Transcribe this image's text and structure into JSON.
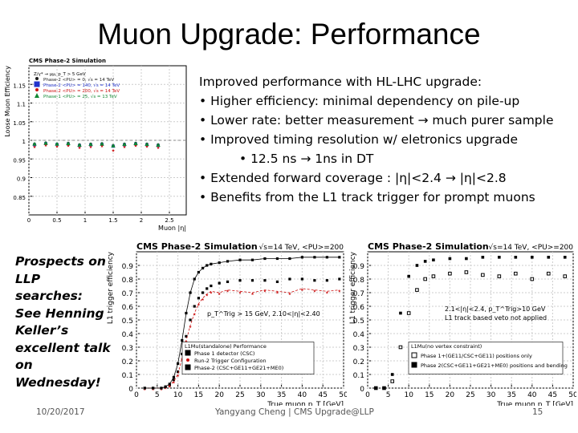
{
  "slide": {
    "title": "Muon Upgrade: Performance",
    "bullets": [
      "Improved performance with HL-LHC upgrade:",
      "• Higher efficiency: minimal dependency on pile-up",
      "• Lower rate: better measurement → much purer sample",
      "• Improved timing resolution w/ eletronics upgrade",
      "• 12.5 ns → 1ns in DT",
      "• Extended forward coverage : |η|<2.4 → |η|<2.8",
      "• Benefits from the L1 track trigger for prompt muons"
    ],
    "llp_note": [
      "Prospects on",
      "LLP searches:",
      "See Henning",
      "Keller’s",
      "excellent talk",
      "on Wednesday!"
    ],
    "footer": {
      "date": "10/20/2017",
      "center": "Yangyang Cheng | CMS Upgrade@LLP",
      "page": "15"
    }
  },
  "chart_data": [
    {
      "type": "scatter",
      "title": "CMS Phase-2 Simulation",
      "xlabel": "Muon |η|",
      "ylabel": "Loose Muon Efficiency",
      "xlim": [
        0,
        2.8
      ],
      "ylim": [
        0.8,
        1.2
      ],
      "xticks": [
        "0",
        "0.5",
        "1",
        "1.5",
        "2",
        "2.5"
      ],
      "yticks": [
        "0.85",
        "0.9",
        "0.95",
        "1",
        "1.05",
        "1.1",
        "1.15"
      ],
      "legend_header": "Z/γ* → μμ, p_T > 5 GeV",
      "series": [
        {
          "name": "Phase-2 <PU> = 0,   √s = 14 TeV",
          "color": "#1a1a1a",
          "x": [
            0.1,
            0.3,
            0.5,
            0.7,
            0.9,
            1.1,
            1.3,
            1.5,
            1.7,
            1.9,
            2.1,
            2.3
          ],
          "y": [
            0.99,
            0.993,
            0.99,
            0.992,
            0.988,
            0.99,
            0.991,
            0.986,
            0.99,
            0.992,
            0.99,
            0.988
          ]
        },
        {
          "name": "Phase-2 <PU> = 140, √s = 14 TeV",
          "color": "#2233cc",
          "x": [
            0.1,
            0.3,
            0.5,
            0.7,
            0.9,
            1.1,
            1.3,
            1.5,
            1.7,
            1.9,
            2.1,
            2.3
          ],
          "y": [
            0.988,
            0.991,
            0.989,
            0.99,
            0.986,
            0.988,
            0.989,
            0.984,
            0.988,
            0.99,
            0.988,
            0.986
          ]
        },
        {
          "name": "Phase-2 <PU> = 200, √s = 14 TeV",
          "color": "#cc1111",
          "x": [
            0.1,
            0.3,
            0.5,
            0.7,
            0.9,
            1.1,
            1.3,
            1.5,
            1.7,
            1.9,
            2.1,
            2.3
          ],
          "y": [
            0.985,
            0.989,
            0.986,
            0.988,
            0.983,
            0.985,
            0.987,
            0.975,
            0.985,
            0.988,
            0.986,
            0.983
          ]
        },
        {
          "name": "Phase-1 <PU> = 25,  √s = 13 TeV",
          "color": "#118833",
          "x": [
            0.1,
            0.3,
            0.5,
            0.7,
            0.9,
            1.1,
            1.3,
            1.5,
            1.7,
            1.9,
            2.1,
            2.3
          ],
          "y": [
            0.99,
            0.992,
            0.99,
            0.991,
            0.987,
            0.989,
            0.99,
            0.985,
            0.989,
            0.991,
            0.989,
            0.987
          ]
        }
      ]
    },
    {
      "type": "line",
      "title": "CMS Phase-2 Simulation",
      "header_right": "√s=14 TeV, <PU>=200",
      "xlabel": "True muon p_T [GeV]",
      "ylabel": "L1 trigger efficiency",
      "xlim": [
        0,
        50
      ],
      "ylim": [
        0,
        1.0
      ],
      "xticks": [
        "0",
        "5",
        "10",
        "15",
        "20",
        "25",
        "30",
        "35",
        "40",
        "45",
        "50"
      ],
      "yticks": [
        "0",
        "0.1",
        "0.2",
        "0.3",
        "0.4",
        "0.5",
        "0.6",
        "0.7",
        "0.8",
        "0.9"
      ],
      "cut_label": "p_T^Trig > 15 GeV, 2.10<|η|<2.40",
      "legend_title": "L1Mu(standalone) Performance",
      "series": [
        {
          "name": "Phase 1 detector (CSC)",
          "color": "#000000",
          "x": [
            2,
            4,
            6,
            7,
            8,
            9,
            10,
            11,
            12,
            13,
            14,
            15,
            16,
            17,
            18,
            20,
            22,
            25,
            28,
            31,
            34,
            37,
            40,
            43,
            46,
            49
          ],
          "y": [
            0,
            0,
            0,
            0.01,
            0.02,
            0.06,
            0.12,
            0.25,
            0.38,
            0.5,
            0.6,
            0.66,
            0.7,
            0.73,
            0.75,
            0.77,
            0.78,
            0.79,
            0.79,
            0.79,
            0.78,
            0.8,
            0.8,
            0.79,
            0.79,
            0.8
          ]
        },
        {
          "name": "Run-2 Trigger Configuration",
          "color": "#cc1111",
          "x": [
            2,
            4,
            6,
            7,
            8,
            9,
            10,
            11,
            12,
            13,
            14,
            15,
            16,
            17,
            18,
            20,
            22,
            25,
            28,
            31,
            34,
            37,
            40,
            43,
            46,
            49
          ],
          "y": [
            0,
            0,
            0,
            0.01,
            0.02,
            0.05,
            0.1,
            0.22,
            0.35,
            0.46,
            0.55,
            0.62,
            0.66,
            0.69,
            0.71,
            0.7,
            0.72,
            0.71,
            0.7,
            0.72,
            0.71,
            0.7,
            0.73,
            0.72,
            0.71,
            0.72
          ]
        },
        {
          "name": "Phase-2 (CSC+GE11+GE21+ME0)",
          "color": "#000000",
          "x": [
            2,
            4,
            6,
            7,
            8,
            9,
            10,
            11,
            12,
            13,
            14,
            15,
            16,
            17,
            18,
            20,
            22,
            25,
            28,
            31,
            34,
            37,
            40,
            43,
            46,
            49
          ],
          "y": [
            0,
            0,
            0,
            0.01,
            0.03,
            0.08,
            0.18,
            0.35,
            0.55,
            0.7,
            0.8,
            0.85,
            0.88,
            0.9,
            0.91,
            0.92,
            0.93,
            0.94,
            0.94,
            0.95,
            0.95,
            0.95,
            0.96,
            0.96,
            0.96,
            0.96
          ]
        }
      ]
    },
    {
      "type": "line",
      "title": "CMS Phase-2 Simulation",
      "header_right": "√s=14 TeV, <PU>=200",
      "xlabel": "True muon p_T [GeV]",
      "ylabel": "L1 trigger efficiency",
      "xlim": [
        0,
        50
      ],
      "ylim": [
        0,
        1.0
      ],
      "xticks": [
        "0",
        "5",
        "10",
        "15",
        "20",
        "25",
        "30",
        "35",
        "40",
        "45",
        "50"
      ],
      "yticks": [
        "0",
        "0.1",
        "0.2",
        "0.3",
        "0.4",
        "0.5",
        "0.6",
        "0.7",
        "0.8",
        "0.9"
      ],
      "cut_label": "2.1<|η|<2.4, p_T^Trig>10 GeV",
      "cut_label2": "L1 track based veto not applied",
      "legend_title": "L1Mu(no vertex constraint)",
      "series": [
        {
          "name": "Phase 1+(GE11/CSC+GE11) positions only",
          "color": "#000000",
          "x": [
            2,
            4,
            6,
            8,
            10,
            12,
            14,
            16,
            20,
            24,
            28,
            32,
            36,
            40,
            44,
            48
          ],
          "y": [
            0,
            0,
            0.05,
            0.3,
            0.55,
            0.72,
            0.8,
            0.82,
            0.84,
            0.85,
            0.83,
            0.82,
            0.84,
            0.8,
            0.84,
            0.82
          ]
        },
        {
          "name": "Phase 2(CSC+GE11+GE21+ME0) positions and bending",
          "color": "#000000",
          "x": [
            2,
            4,
            6,
            8,
            10,
            12,
            14,
            16,
            20,
            24,
            28,
            32,
            36,
            40,
            44,
            48
          ],
          "y": [
            0,
            0,
            0.1,
            0.55,
            0.82,
            0.9,
            0.93,
            0.94,
            0.95,
            0.95,
            0.96,
            0.96,
            0.96,
            0.96,
            0.96,
            0.96
          ]
        }
      ]
    }
  ]
}
